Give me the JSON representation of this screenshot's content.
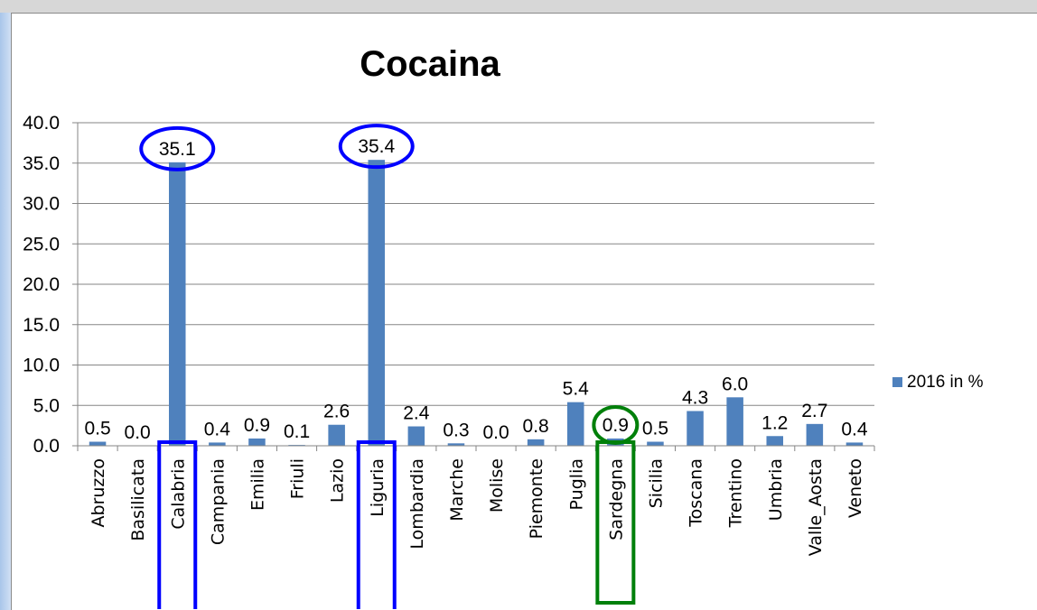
{
  "chart_data": {
    "type": "bar",
    "title": "Cocaina",
    "xlabel": "",
    "ylabel": "",
    "ylim": [
      0,
      40
    ],
    "yticks": [
      "0.0",
      "5.0",
      "10.0",
      "15.0",
      "20.0",
      "25.0",
      "30.0",
      "35.0",
      "40.0"
    ],
    "grid": true,
    "legend_position": "right",
    "categories": [
      "Abruzzo",
      "Basilicata",
      "Calabria",
      "Campania",
      "Emilia",
      "Friuli",
      "Lazio",
      "Liguria",
      "Lombardia",
      "Marche",
      "Molise",
      "Piemonte",
      "Puglia",
      "Sardegna",
      "Sicilia",
      "Toscana",
      "Trentino",
      "Umbria",
      "Valle_Aosta",
      "Veneto"
    ],
    "series": [
      {
        "name": "2016 in %",
        "color": "#4f81bd",
        "values": [
          0.5,
          0.0,
          35.1,
          0.4,
          0.9,
          0.1,
          2.6,
          35.4,
          2.4,
          0.3,
          0.0,
          0.8,
          5.4,
          0.9,
          0.5,
          4.3,
          6.0,
          1.2,
          2.7,
          0.4
        ],
        "labels": [
          "0.5",
          "0.0",
          "35.1",
          "0.4",
          "0.9",
          "0.1",
          "2.6",
          "35.4",
          "2.4",
          "0.3",
          "0.0",
          "0.8",
          "5.4",
          "0.9",
          "0.5",
          "4.3",
          "6.0",
          "1.2",
          "2.7",
          "0.4"
        ]
      }
    ],
    "annotations": [
      {
        "category": "Calabria",
        "shape": "ellipse-around-label-and-box-around-tick",
        "color": "#0000ff"
      },
      {
        "category": "Liguria",
        "shape": "ellipse-around-label-and-box-around-tick",
        "color": "#0000ff"
      },
      {
        "category": "Sardegna",
        "shape": "ellipse-around-label-and-box-around-tick",
        "color": "#00800a"
      }
    ]
  }
}
